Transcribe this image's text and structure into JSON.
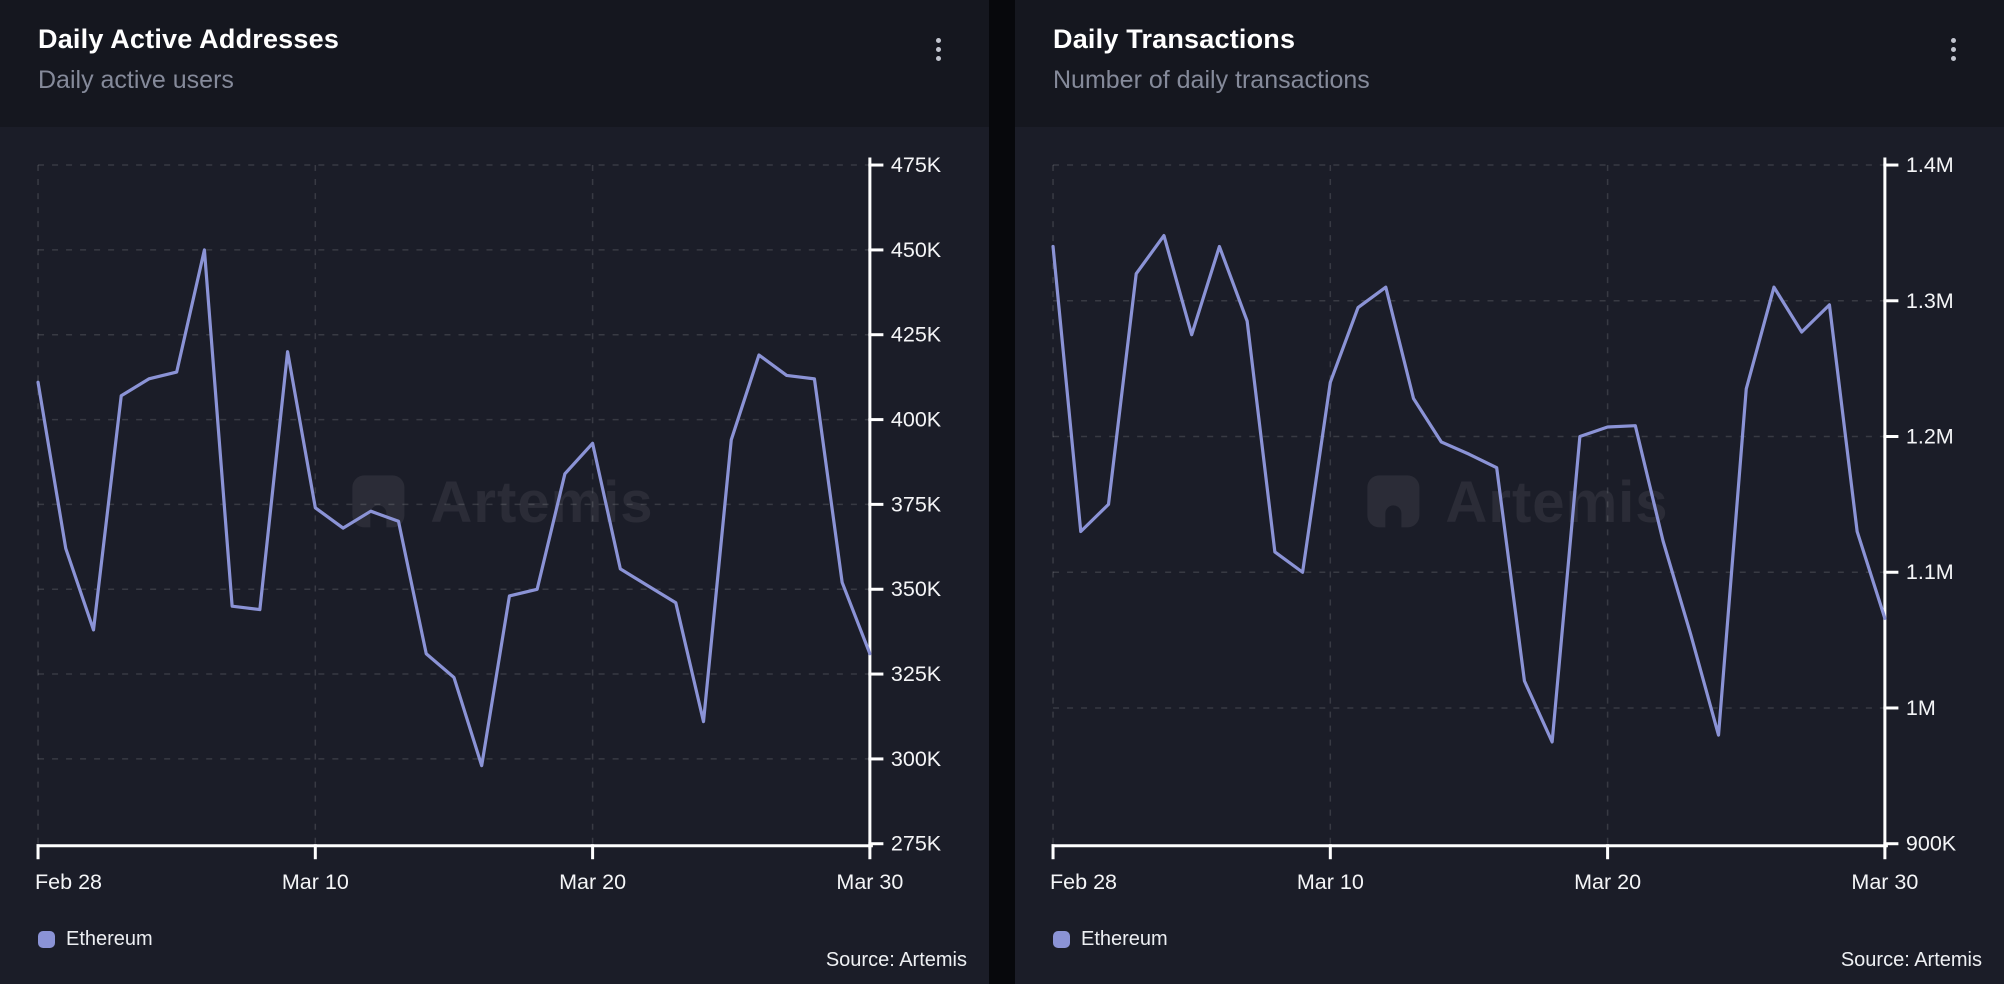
{
  "colors": {
    "page_background": "#07080c",
    "card_background": "#1b1d28",
    "header_background": "#15171f",
    "accent_line": "#8b93d6",
    "axis": "#ffffff",
    "subtitle_text": "#858a9a",
    "grid": "rgba(255,255,255,0.13)",
    "watermark": "rgba(255,255,255,0.07)"
  },
  "cards": [
    {
      "title": "Daily Active Addresses",
      "subtitle": "Daily active users",
      "menu_icon": "kebab-menu",
      "legend": [
        {
          "label": "Ethereum",
          "color": "#8b93d6"
        }
      ],
      "source": "Source: Artemis",
      "watermark": "Artemis"
    },
    {
      "title": "Daily Transactions",
      "subtitle": "Number of daily transactions",
      "menu_icon": "kebab-menu",
      "legend": [
        {
          "label": "Ethereum",
          "color": "#8b93d6"
        }
      ],
      "source": "Source: Artemis",
      "watermark": "Artemis"
    }
  ],
  "chart_data": [
    {
      "type": "line",
      "title": "Daily Active Addresses",
      "xlabel": "",
      "ylabel": "",
      "x_tick_labels": [
        "Feb 28",
        "Mar 10",
        "Mar 20",
        "Mar 30"
      ],
      "x_tick_indices": [
        0,
        10,
        20,
        30
      ],
      "y_tick_labels": [
        "275K",
        "300K",
        "325K",
        "350K",
        "375K",
        "400K",
        "425K",
        "450K",
        "475K"
      ],
      "y_ticks": [
        275000,
        300000,
        325000,
        350000,
        375000,
        400000,
        425000,
        450000,
        475000
      ],
      "ylim": [
        275000,
        475000
      ],
      "grid": "dashed",
      "legend_position": "bottom-left",
      "series": [
        {
          "name": "Ethereum",
          "color": "#8b93d6",
          "values": [
            411000,
            362000,
            338000,
            407000,
            412000,
            414000,
            450000,
            345000,
            344000,
            420000,
            374000,
            368000,
            373000,
            370000,
            331000,
            324000,
            298000,
            348000,
            350000,
            384000,
            393000,
            356000,
            351000,
            346000,
            311000,
            394000,
            419000,
            413000,
            412000,
            352000,
            331000
          ]
        }
      ]
    },
    {
      "type": "line",
      "title": "Daily Transactions",
      "xlabel": "",
      "ylabel": "",
      "x_tick_labels": [
        "Feb 28",
        "Mar 10",
        "Mar 20",
        "Mar 30"
      ],
      "x_tick_indices": [
        0,
        10,
        20,
        30
      ],
      "y_tick_labels": [
        "900K",
        "1M",
        "1.1M",
        "1.2M",
        "1.3M",
        "1.4M"
      ],
      "y_ticks": [
        900000,
        1000000,
        1100000,
        1200000,
        1300000,
        1400000
      ],
      "ylim": [
        900000,
        1400000
      ],
      "grid": "dashed",
      "legend_position": "bottom-left",
      "series": [
        {
          "name": "Ethereum",
          "color": "#8b93d6",
          "values": [
            1340000,
            1130000,
            1150000,
            1320000,
            1348000,
            1275000,
            1340000,
            1285000,
            1115000,
            1100000,
            1240000,
            1295000,
            1310000,
            1228000,
            1196000,
            1187000,
            1177000,
            1020000,
            975000,
            1200000,
            1207000,
            1208000,
            1123000,
            1054000,
            980000,
            1235000,
            1310000,
            1277000,
            1297000,
            1130000,
            1066000
          ]
        }
      ]
    }
  ]
}
